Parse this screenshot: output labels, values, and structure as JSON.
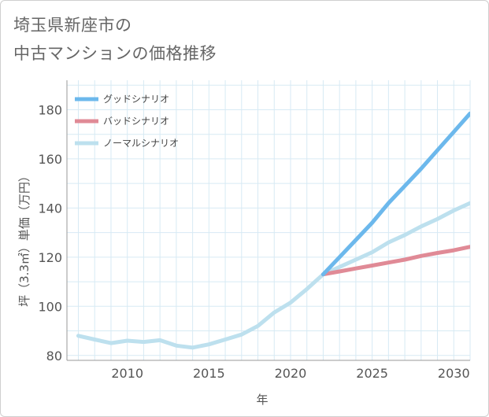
{
  "title": {
    "line1": "埼玉県新座市の",
    "line2": "中古マンションの価格推移"
  },
  "colors": {
    "good": "#6cb8ec",
    "bad": "#e08a96",
    "normal": "#bde0ee",
    "grid": "#d7eaf4",
    "axis": "#999999"
  },
  "chart_data": {
    "type": "line",
    "xlabel": "年",
    "ylabel": "坪（3.3㎡）単価（万円）",
    "xlim": [
      2006.3,
      2031
    ],
    "ylim": [
      78,
      192
    ],
    "xticks": [
      2010,
      2015,
      2020,
      2025,
      2030
    ],
    "yticks": [
      80,
      100,
      120,
      140,
      160,
      180
    ],
    "grid": true,
    "legend_position": "top-left",
    "series": [
      {
        "name": "グッドシナリオ",
        "color_key": "good",
        "x": [
          2022,
          2023,
          2024,
          2025,
          2026,
          2027,
          2028,
          2029,
          2030,
          2031
        ],
        "y": [
          113,
          120,
          127,
          134,
          142,
          149,
          156,
          163.5,
          171,
          178.5
        ]
      },
      {
        "name": "バッドシナリオ",
        "color_key": "bad",
        "x": [
          2022,
          2023,
          2024,
          2025,
          2026,
          2027,
          2028,
          2029,
          2030,
          2031
        ],
        "y": [
          113,
          114.2,
          115.4,
          116.6,
          117.8,
          119,
          120.5,
          121.7,
          122.8,
          124.2
        ]
      },
      {
        "name": "ノーマルシナリオ",
        "color_key": "normal",
        "x": [
          2007,
          2008,
          2009,
          2010,
          2011,
          2012,
          2013,
          2014,
          2015,
          2016,
          2017,
          2018,
          2019,
          2020,
          2021,
          2022,
          2023,
          2024,
          2025,
          2026,
          2027,
          2028,
          2029,
          2030,
          2031
        ],
        "y": [
          88,
          86.5,
          85,
          86,
          85.5,
          86.2,
          84,
          83.2,
          84.5,
          86.5,
          88.5,
          92,
          97.5,
          101.5,
          107,
          113,
          116,
          119,
          122,
          126,
          129,
          132.5,
          135.5,
          139,
          142
        ]
      }
    ]
  }
}
